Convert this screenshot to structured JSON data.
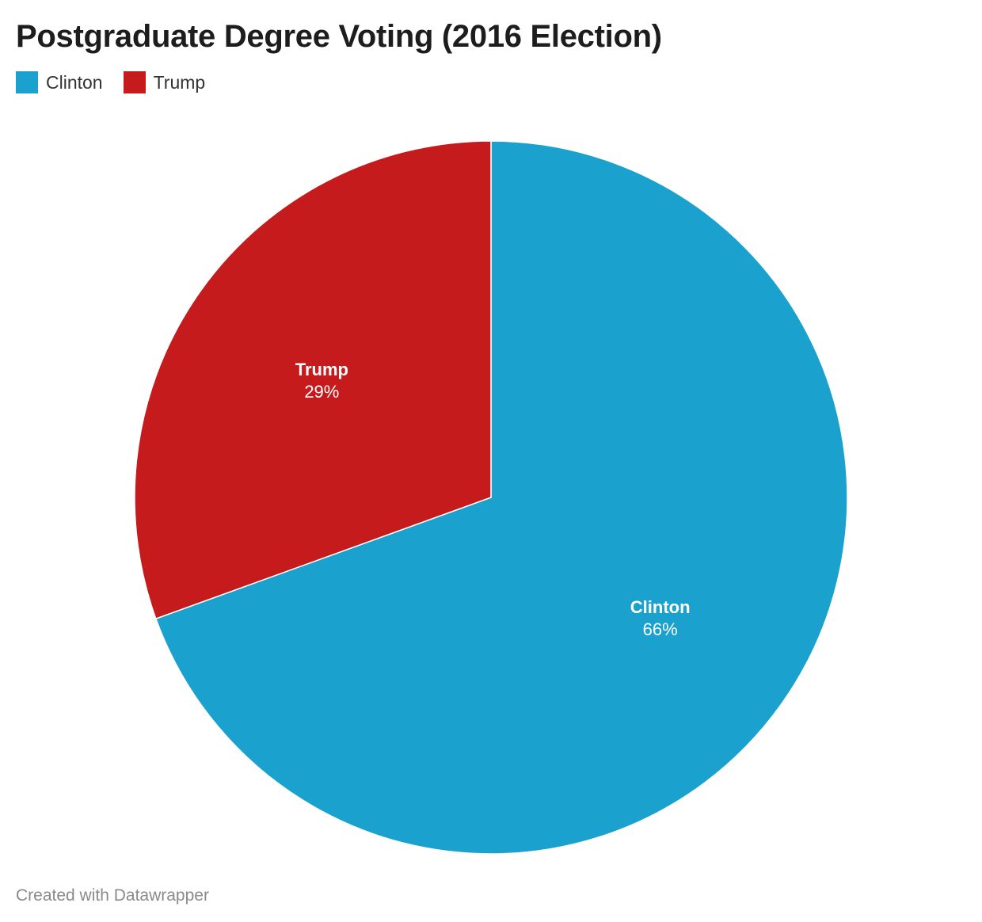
{
  "title": "Postgraduate Degree Voting (2016 Election)",
  "footer": "Created with Datawrapper",
  "legend": [
    {
      "label": "Clinton",
      "color": "#1aa1ce"
    },
    {
      "label": "Trump",
      "color": "#c61b1c"
    }
  ],
  "chart_data": {
    "type": "pie",
    "title": "Postgraduate Degree Voting (2016 Election)",
    "legend_placement": "top-left",
    "slices": [
      {
        "label": "Clinton",
        "value": 66,
        "display": "66%",
        "color": "#1aa1ce"
      },
      {
        "label": "Trump",
        "value": 29,
        "display": "29%",
        "color": "#c61b1c"
      }
    ]
  }
}
